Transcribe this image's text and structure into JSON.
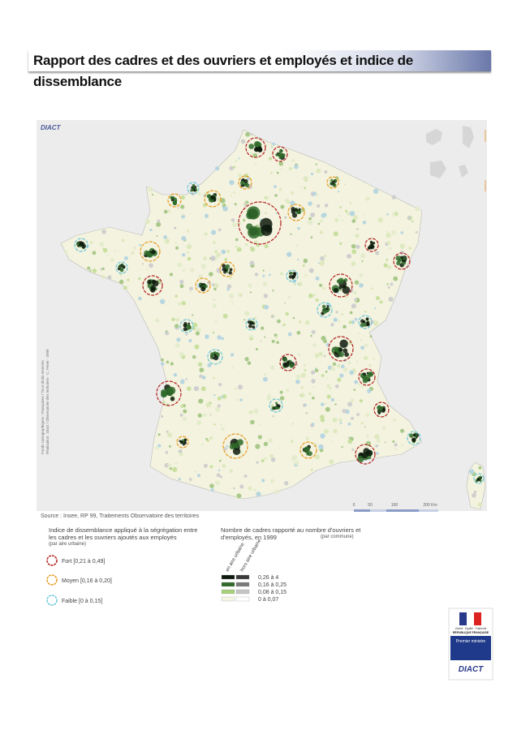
{
  "header": {
    "title": "Rapport des cadres et des ouvriers et employés et indice de dissemblance"
  },
  "map": {
    "logo": "DIACT",
    "credits": [
      "Fonds cartographiques : Françaises / Tous droits réservés",
      "Réalisation : Diact / Observatoire des territoires - C. Fenet - 2008"
    ],
    "source": "Source : Insee, RP 99, Traitements Observatoire des territoires",
    "scale": [
      "0",
      "50",
      "100",
      "200 Km"
    ]
  },
  "legend_index": {
    "title": "Indice de dissemblance appliqué à la ségrégation entre les cadres et les ouvriers ajoutés aux employés",
    "note": "(par aire urbaine)",
    "items": [
      "Fort [0,21 à 0,49]",
      "Moyen [0,16 à 0,20]",
      "Faible [0 à 0,15]"
    ]
  },
  "legend_ratio": {
    "title": "Nombre de cadres rapporté au nombre d'ouvriers et d'employés, en 1999",
    "note": "(par commune)",
    "columns": [
      "en aire urbaine",
      "hors aire urbaine"
    ],
    "items": [
      "0,26 à 4",
      "0,16 à 0,25",
      "0,08 à 0,15",
      "0 à 0,07"
    ]
  },
  "logo": {
    "motto": "Liberté · Égalité · Fraternité",
    "republic": "RÉPUBLIQUE FRANÇAISE",
    "ministry": "Premier ministre",
    "agency": "DIACT"
  }
}
